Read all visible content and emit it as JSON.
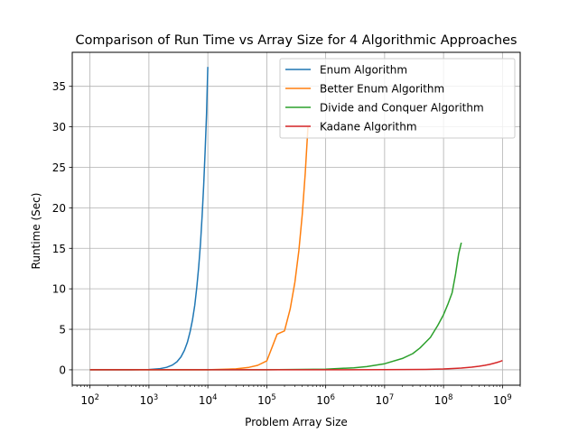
{
  "chart_data": {
    "type": "line",
    "title": "Comparison of Run Time vs Array Size for 4 Algorithmic Approaches",
    "xlabel": "Problem Array Size",
    "ylabel": "Runtime (Sec)",
    "xscale": "log",
    "xlim": [
      50,
      2000000000
    ],
    "ylim": [
      -1.9,
      39.2
    ],
    "grid": true,
    "legend_position": "top-right",
    "x_ticks": [
      {
        "base": "10",
        "exp": "2",
        "value": 100
      },
      {
        "base": "10",
        "exp": "3",
        "value": 1000
      },
      {
        "base": "10",
        "exp": "4",
        "value": 10000
      },
      {
        "base": "10",
        "exp": "5",
        "value": 100000
      },
      {
        "base": "10",
        "exp": "6",
        "value": 1000000
      },
      {
        "base": "10",
        "exp": "7",
        "value": 10000000
      },
      {
        "base": "10",
        "exp": "8",
        "value": 100000000
      },
      {
        "base": "10",
        "exp": "9",
        "value": 1000000000
      }
    ],
    "y_ticks": [
      "0",
      "5",
      "10",
      "15",
      "20",
      "25",
      "30",
      "35"
    ],
    "series": [
      {
        "name": "Enum Algorithm",
        "color": "#1f77b4",
        "x": [
          100,
          500,
          1000,
          1500,
          2000,
          2500,
          3000,
          3500,
          4000,
          4500,
          5000,
          5500,
          6000,
          6500,
          7000,
          7500,
          8000,
          8500,
          9000,
          9500,
          10000
        ],
        "y": [
          0,
          0,
          0.04,
          0.13,
          0.3,
          0.58,
          1.0,
          1.6,
          2.4,
          3.4,
          4.7,
          6.2,
          8.0,
          10.2,
          12.7,
          15.6,
          19.0,
          22.7,
          26.9,
          31.6,
          37.4
        ]
      },
      {
        "name": "Better Enum Algorithm",
        "color": "#ff7f0e",
        "x": [
          100,
          1000,
          10000,
          30000,
          50000,
          70000,
          100000,
          150000,
          200000,
          250000,
          300000,
          350000,
          400000,
          450000,
          500000
        ],
        "y": [
          0,
          0,
          0,
          0.12,
          0.3,
          0.55,
          1.1,
          4.4,
          4.8,
          7.5,
          10.8,
          14.7,
          19.2,
          24.3,
          30.0
        ]
      },
      {
        "name": "Divide and Conquer Algorithm",
        "color": "#2ca02c",
        "x": [
          100,
          100000,
          1000000,
          3000000,
          5000000,
          10000000,
          20000000,
          30000000,
          40000000,
          60000000,
          80000000,
          100000000,
          120000000,
          140000000,
          160000000,
          180000000,
          200000000
        ],
        "y": [
          0,
          0.01,
          0.08,
          0.25,
          0.4,
          0.75,
          1.4,
          2.0,
          2.7,
          4.0,
          5.5,
          6.8,
          8.2,
          9.5,
          11.8,
          14.3,
          15.7
        ]
      },
      {
        "name": "Kadane Algorithm",
        "color": "#d62728",
        "x": [
          100,
          10000000,
          50000000,
          100000000,
          200000000,
          300000000,
          400000000,
          500000000,
          600000000,
          700000000,
          800000000,
          900000000,
          1000000000
        ],
        "y": [
          0,
          0.02,
          0.05,
          0.11,
          0.22,
          0.33,
          0.44,
          0.55,
          0.66,
          0.78,
          0.9,
          1.02,
          1.14
        ]
      }
    ]
  }
}
